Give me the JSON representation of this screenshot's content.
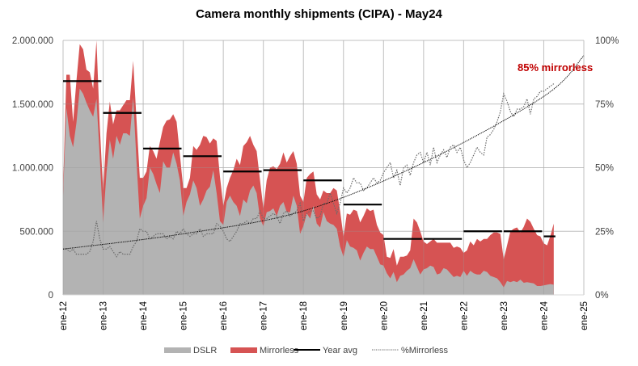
{
  "chart_data": {
    "type": "area",
    "title": "Camera monthly shipments (CIPA) - May24",
    "xlabel": "",
    "ylabel": "",
    "y2label": "",
    "start": "2012-01",
    "x_ticks": [
      "ene-12",
      "ene-13",
      "ene-14",
      "ene-15",
      "ene-16",
      "ene-17",
      "ene-18",
      "ene-19",
      "ene-20",
      "ene-21",
      "ene-22",
      "ene-23",
      "ene-24",
      "ene-25"
    ],
    "y_ticks": [
      "0",
      "500.000",
      "1.000.000",
      "1.500.000",
      "2.000.000"
    ],
    "y_tick_values": [
      0,
      500000,
      1000000,
      1500000,
      2000000
    ],
    "y2_ticks": [
      "0%",
      "25%",
      "50%",
      "75%",
      "100%"
    ],
    "y2_tick_values": [
      0,
      0.25,
      0.5,
      0.75,
      1.0
    ],
    "ylim": [
      0,
      2000000
    ],
    "y2lim": [
      0,
      1
    ],
    "xlim": [
      "2012-01",
      "2025-01"
    ],
    "grid": true,
    "legend": {
      "placement": "bottom",
      "entries": [
        "DSLR",
        "Mirrorless",
        "Year avg",
        "%Mirrorless"
      ]
    },
    "colors": {
      "dslr": "#b3b3b3",
      "mirrorless": "#d65353",
      "year_avg": "#000000",
      "pct": "#6b6b6b",
      "grid": "#d9d9d9",
      "annotation": "#c00000"
    },
    "annotation": "85% mirrorless",
    "series": [
      {
        "name": "DSLR",
        "kind": "stacked-area",
        "values": [
          780000,
          1470000,
          1250000,
          1160000,
          1350000,
          1620000,
          1580000,
          1510000,
          1450000,
          1400000,
          1540000,
          1080000,
          570000,
          960000,
          1220000,
          1070000,
          1250000,
          1180000,
          1270000,
          1270000,
          1250000,
          1550000,
          1050000,
          600000,
          700000,
          760000,
          1000000,
          950000,
          870000,
          800000,
          1050000,
          1000000,
          1000000,
          1120000,
          1030000,
          900000,
          620000,
          730000,
          790000,
          900000,
          840000,
          700000,
          750000,
          820000,
          850000,
          980000,
          800000,
          580000,
          550000,
          730000,
          780000,
          730000,
          700000,
          620000,
          750000,
          720000,
          820000,
          860000,
          800000,
          600000,
          540000,
          650000,
          660000,
          680000,
          620000,
          700000,
          730000,
          650000,
          650000,
          780000,
          700000,
          480000,
          540000,
          640000,
          600000,
          700000,
          560000,
          530000,
          650000,
          580000,
          560000,
          550000,
          520000,
          380000,
          300000,
          430000,
          380000,
          370000,
          350000,
          270000,
          330000,
          380000,
          360000,
          360000,
          300000,
          240000,
          230000,
          170000,
          130000,
          180000,
          100000,
          150000,
          160000,
          190000,
          210000,
          280000,
          220000,
          160000,
          200000,
          210000,
          230000,
          220000,
          160000,
          170000,
          210000,
          200000,
          170000,
          140000,
          150000,
          140000,
          190000,
          150000,
          190000,
          170000,
          160000,
          160000,
          190000,
          180000,
          150000,
          140000,
          130000,
          100000,
          60000,
          110000,
          100000,
          110000,
          100000,
          120000,
          95000,
          100000,
          95000,
          90000,
          70000,
          70000,
          75000,
          80000,
          85000,
          80000
        ]
      },
      {
        "name": "Mirrorless",
        "kind": "stacked-area",
        "values": [
          50000,
          260000,
          480000,
          200000,
          330000,
          350000,
          350000,
          260000,
          300000,
          220000,
          460000,
          250000,
          250000,
          310000,
          300000,
          270000,
          200000,
          270000,
          220000,
          260000,
          280000,
          290000,
          330000,
          320000,
          220000,
          210000,
          170000,
          180000,
          200000,
          400000,
          270000,
          370000,
          380000,
          300000,
          330000,
          200000,
          220000,
          110000,
          130000,
          270000,
          300000,
          480000,
          500000,
          420000,
          340000,
          250000,
          410000,
          350000,
          150000,
          110000,
          140000,
          250000,
          370000,
          400000,
          420000,
          480000,
          430000,
          320000,
          330000,
          300000,
          140000,
          250000,
          340000,
          330000,
          370000,
          330000,
          390000,
          390000,
          440000,
          350000,
          330000,
          300000,
          190000,
          280000,
          350000,
          270000,
          230000,
          220000,
          170000,
          220000,
          240000,
          290000,
          300000,
          280000,
          160000,
          210000,
          250000,
          300000,
          310000,
          300000,
          290000,
          300000,
          300000,
          310000,
          250000,
          250000,
          240000,
          130000,
          160000,
          180000,
          130000,
          150000,
          140000,
          120000,
          140000,
          320000,
          350000,
          340000,
          220000,
          190000,
          190000,
          220000,
          250000,
          240000,
          200000,
          210000,
          240000,
          230000,
          230000,
          230000,
          140000,
          200000,
          230000,
          220000,
          280000,
          260000,
          250000,
          260000,
          320000,
          350000,
          360000,
          380000,
          220000,
          280000,
          400000,
          410000,
          430000,
          370000,
          440000,
          500000,
          480000,
          430000,
          400000,
          390000,
          330000,
          310000,
          380000,
          480000
        ]
      },
      {
        "name": "%Mirrorless",
        "kind": "line-secondary",
        "values": [
          0.18,
          0.18,
          0.17,
          0.18,
          0.16,
          0.16,
          0.16,
          0.16,
          0.17,
          0.21,
          0.29,
          0.22,
          0.18,
          0.18,
          0.19,
          0.17,
          0.15,
          0.17,
          0.16,
          0.16,
          0.16,
          0.19,
          0.21,
          0.26,
          0.25,
          0.25,
          0.22,
          0.23,
          0.24,
          0.24,
          0.24,
          0.22,
          0.23,
          0.22,
          0.25,
          0.24,
          0.26,
          0.24,
          0.23,
          0.24,
          0.24,
          0.26,
          0.23,
          0.24,
          0.24,
          0.24,
          0.28,
          0.27,
          0.25,
          0.22,
          0.21,
          0.23,
          0.25,
          0.28,
          0.28,
          0.29,
          0.28,
          0.3,
          0.3,
          0.33,
          0.3,
          0.3,
          0.31,
          0.32,
          0.31,
          0.28,
          0.32,
          0.33,
          0.31,
          0.32,
          0.33,
          0.36,
          0.29,
          0.32,
          0.33,
          0.33,
          0.3,
          0.31,
          0.36,
          0.36,
          0.4,
          0.36,
          0.32,
          0.36,
          0.42,
          0.4,
          0.42,
          0.46,
          0.44,
          0.44,
          0.41,
          0.42,
          0.44,
          0.46,
          0.44,
          0.45,
          0.48,
          0.5,
          0.52,
          0.46,
          0.49,
          0.43,
          0.5,
          0.51,
          0.47,
          0.52,
          0.55,
          0.56,
          0.52,
          0.56,
          0.51,
          0.58,
          0.52,
          0.55,
          0.57,
          0.54,
          0.58,
          0.59,
          0.56,
          0.58,
          0.53,
          0.5,
          0.52,
          0.55,
          0.58,
          0.56,
          0.55,
          0.62,
          0.63,
          0.65,
          0.68,
          0.72,
          0.79,
          0.76,
          0.72,
          0.7,
          0.73,
          0.73,
          0.74,
          0.77,
          0.71,
          0.77,
          0.78,
          0.8,
          0.8,
          0.81,
          0.82,
          0.83
        ]
      },
      {
        "name": "Year avg",
        "kind": "step",
        "years": [
          2012,
          2013,
          2014,
          2015,
          2016,
          2017,
          2018,
          2019,
          2020,
          2021,
          2022,
          2023,
          2024
        ],
        "values": [
          1680000,
          1430000,
          1150000,
          1090000,
          970000,
          980000,
          900000,
          710000,
          440000,
          440000,
          500000,
          500000,
          460000
        ]
      },
      {
        "name": "Trend %Mirrorless",
        "kind": "trend-secondary",
        "x": [
          "2012-01",
          "2015-01",
          "2018-01",
          "2021-01",
          "2024-01",
          "2025-01"
        ],
        "values": [
          0.18,
          0.24,
          0.33,
          0.52,
          0.78,
          0.94
        ]
      }
    ]
  }
}
